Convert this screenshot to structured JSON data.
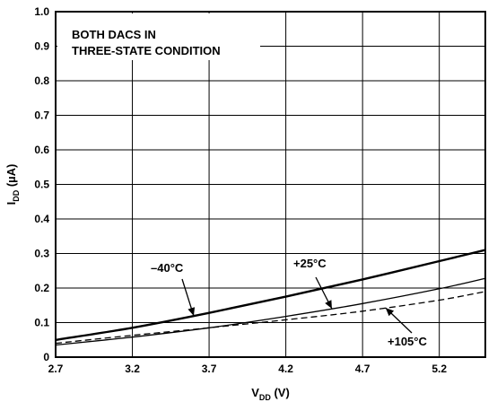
{
  "chart_data": {
    "type": "line",
    "title": "",
    "xlabel": "V",
    "xlabel_sub": "DD",
    "xlabel_unit": " (V)",
    "ylabel": "I",
    "ylabel_sub": "DD",
    "ylabel_unit": " (µA)",
    "xlim": [
      2.7,
      5.5
    ],
    "ylim": [
      0,
      1.0
    ],
    "x_ticks": [
      2.7,
      3.2,
      3.7,
      4.2,
      4.7,
      5.2
    ],
    "x_tick_labels": [
      "2.7",
      "3.2",
      "3.7",
      "4.2",
      "4.7",
      "5.2"
    ],
    "y_ticks": [
      0,
      0.1,
      0.2,
      0.3,
      0.4,
      0.5,
      0.6,
      0.7,
      0.8,
      0.9,
      1.0
    ],
    "y_tick_labels": [
      "0",
      "0.1",
      "0.2",
      "0.3",
      "0.4",
      "0.5",
      "0.6",
      "0.7",
      "0.8",
      "0.9",
      "1.0"
    ],
    "grid": true,
    "annotation_lines": [
      "BOTH DACS IN",
      "THREE-STATE CONDITION"
    ],
    "series": [
      {
        "name": "–40°C",
        "style": "thick-solid",
        "x": [
          2.7,
          3.2,
          3.7,
          4.2,
          4.7,
          5.2,
          5.5
        ],
        "y": [
          0.05,
          0.085,
          0.128,
          0.175,
          0.225,
          0.278,
          0.31
        ]
      },
      {
        "name": "+25°C",
        "style": "thin-solid",
        "x": [
          2.7,
          3.2,
          3.7,
          4.2,
          4.7,
          5.2,
          5.5
        ],
        "y": [
          0.035,
          0.058,
          0.085,
          0.118,
          0.155,
          0.198,
          0.228
        ]
      },
      {
        "name": "+105°C",
        "style": "dashed",
        "x": [
          2.7,
          3.2,
          3.7,
          4.2,
          4.7,
          5.2,
          5.5
        ],
        "y": [
          0.04,
          0.063,
          0.085,
          0.108,
          0.133,
          0.165,
          0.19
        ]
      }
    ]
  }
}
